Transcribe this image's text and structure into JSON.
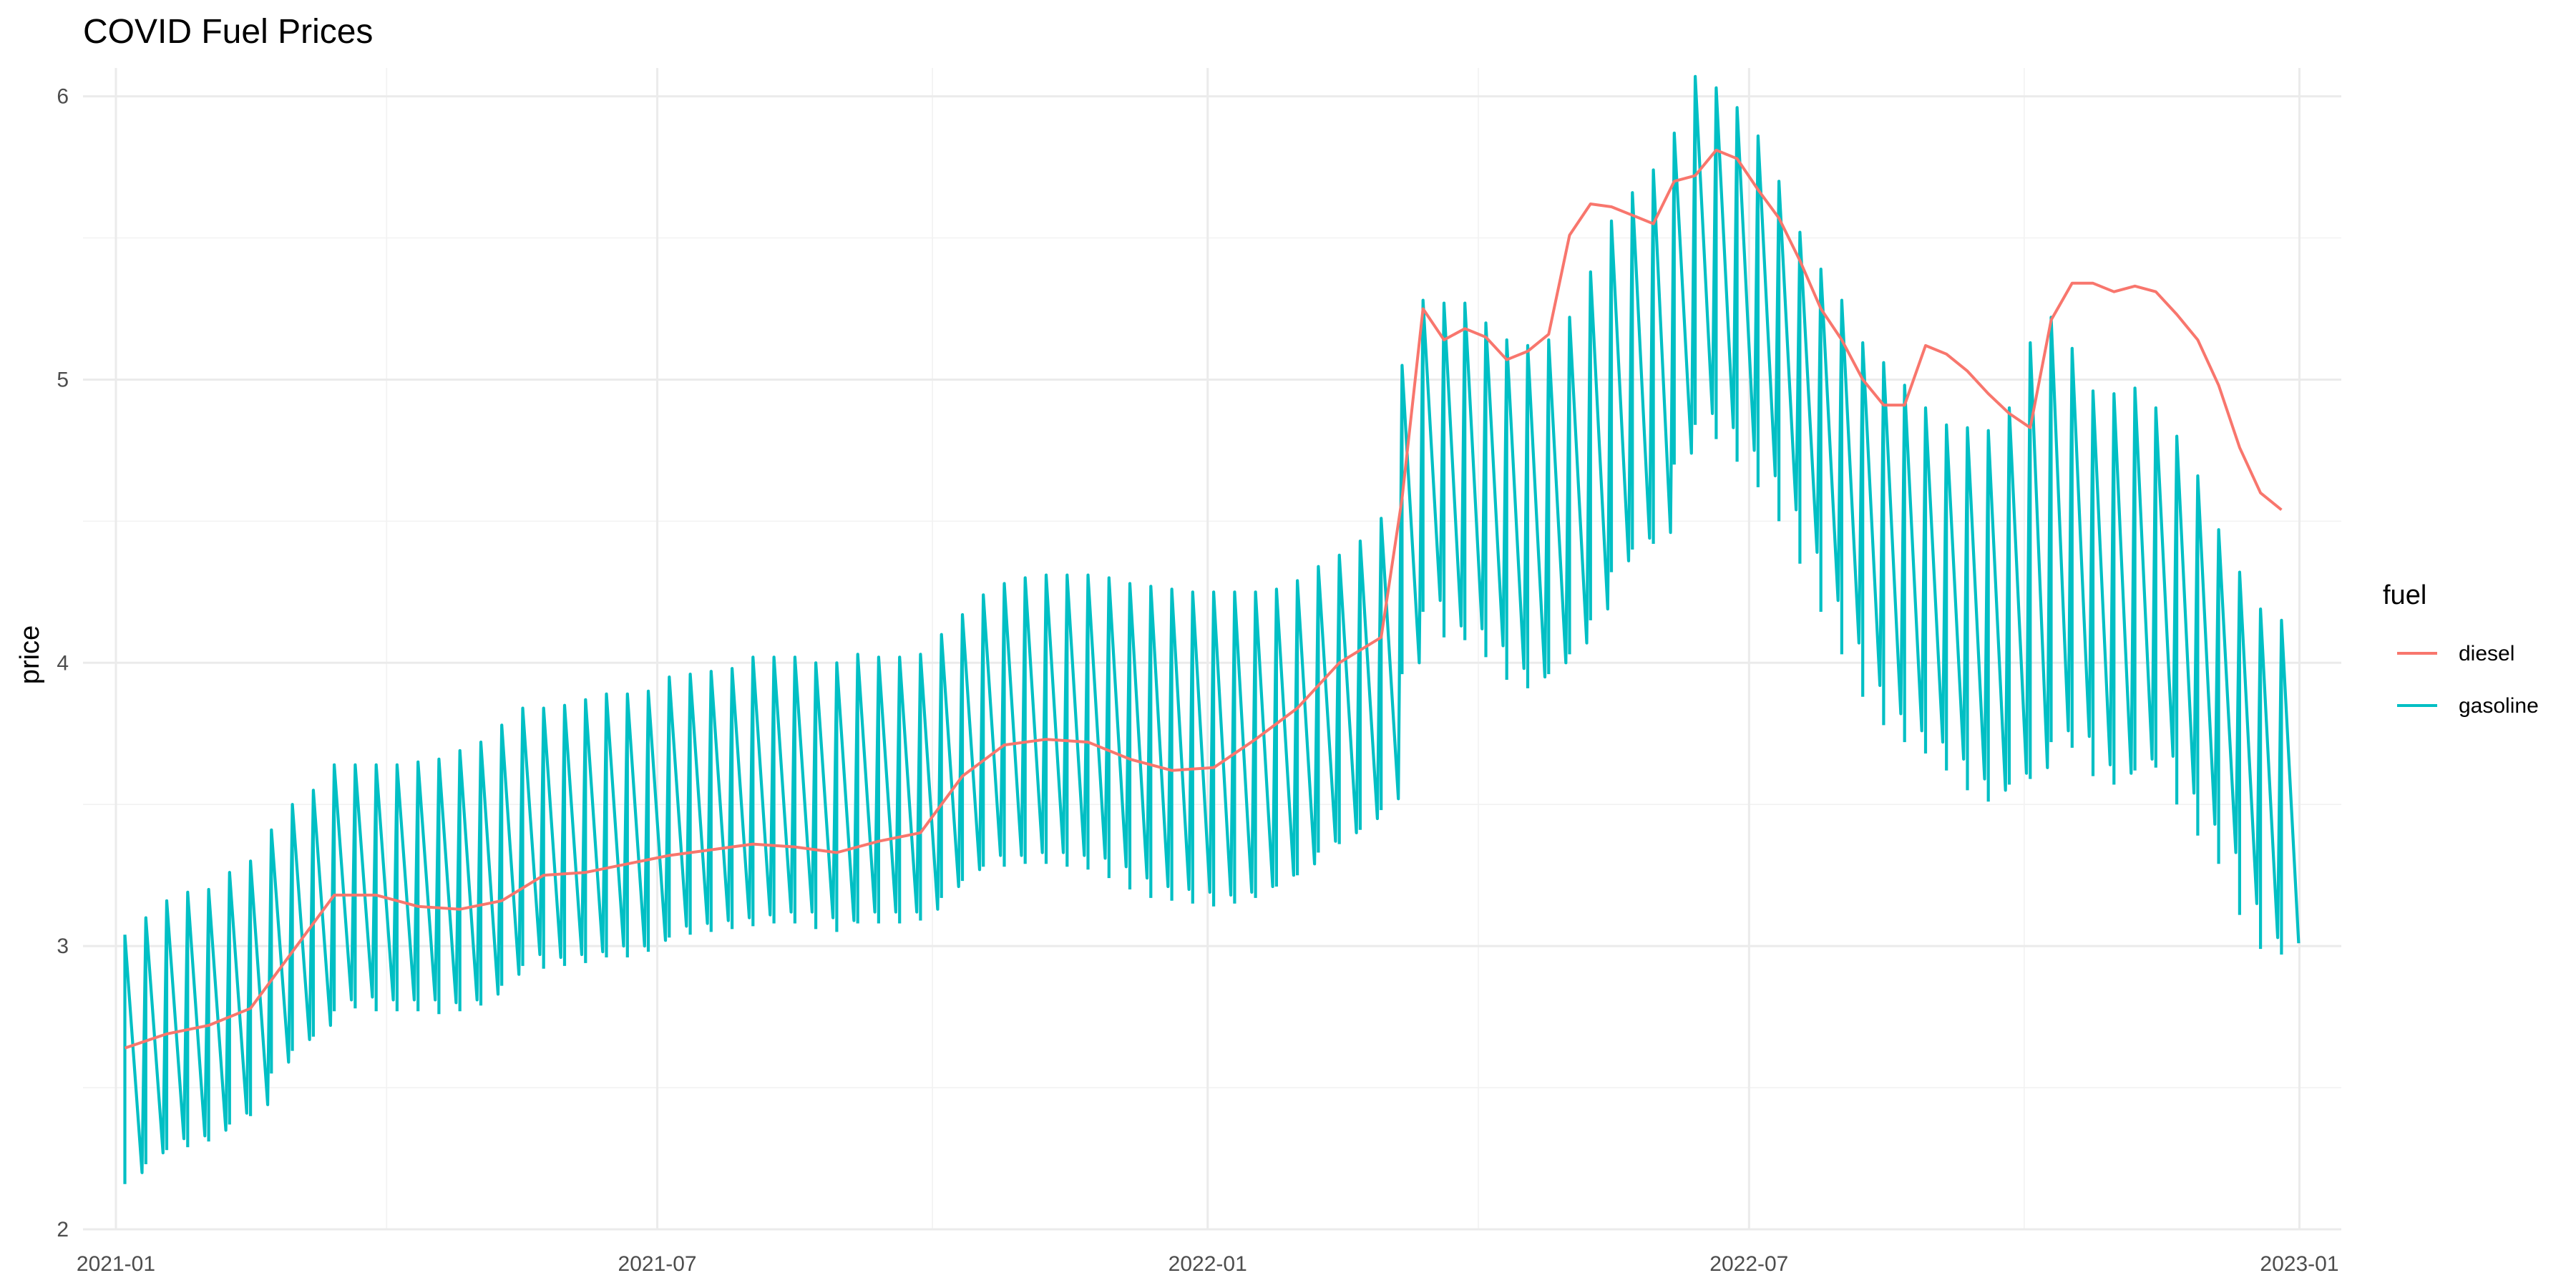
{
  "chart_data": {
    "type": "line",
    "title": "COVID Fuel Prices",
    "xlabel": "",
    "ylabel": "price",
    "x_scale": "date",
    "xlim": [
      "2020-12-21",
      "2023-01-15"
    ],
    "ylim": [
      2,
      6.1
    ],
    "x_ticks": [
      "2021-01-01",
      "2021-07-01",
      "2022-01-01",
      "2022-07-01",
      "2023-01-01"
    ],
    "x_tick_labels": [
      "2021-01",
      "2021-07",
      "2022-01",
      "2022-07",
      "2023-01"
    ],
    "y_ticks": [
      2,
      3,
      4,
      5,
      6
    ],
    "y_tick_labels": [
      "2",
      "3",
      "4",
      "5",
      "6"
    ],
    "grid": true,
    "legend": {
      "title": "fuel",
      "position": "right"
    },
    "series": [
      {
        "name": "diesel",
        "color": "#F8766D",
        "points": [
          [
            "2021-01-04",
            2.64
          ],
          [
            "2021-01-18",
            2.69
          ],
          [
            "2021-02-01",
            2.72
          ],
          [
            "2021-02-15",
            2.78
          ],
          [
            "2021-03-01",
            2.98
          ],
          [
            "2021-03-15",
            3.18
          ],
          [
            "2021-03-29",
            3.18
          ],
          [
            "2021-04-12",
            3.14
          ],
          [
            "2021-04-26",
            3.13
          ],
          [
            "2021-05-10",
            3.16
          ],
          [
            "2021-05-24",
            3.25
          ],
          [
            "2021-06-07",
            3.26
          ],
          [
            "2021-06-21",
            3.29
          ],
          [
            "2021-07-05",
            3.32
          ],
          [
            "2021-07-19",
            3.34
          ],
          [
            "2021-08-02",
            3.36
          ],
          [
            "2021-08-16",
            3.35
          ],
          [
            "2021-08-30",
            3.33
          ],
          [
            "2021-09-13",
            3.37
          ],
          [
            "2021-09-27",
            3.4
          ],
          [
            "2021-10-11",
            3.6
          ],
          [
            "2021-10-25",
            3.71
          ],
          [
            "2021-11-08",
            3.73
          ],
          [
            "2021-11-22",
            3.72
          ],
          [
            "2021-12-06",
            3.66
          ],
          [
            "2021-12-20",
            3.62
          ],
          [
            "2022-01-03",
            3.63
          ],
          [
            "2022-01-17",
            3.73
          ],
          [
            "2022-01-31",
            3.84
          ],
          [
            "2022-02-14",
            4.0
          ],
          [
            "2022-02-28",
            4.09
          ],
          [
            "2022-03-07",
            4.58
          ],
          [
            "2022-03-14",
            5.25
          ],
          [
            "2022-03-21",
            5.14
          ],
          [
            "2022-03-28",
            5.18
          ],
          [
            "2022-04-04",
            5.15
          ],
          [
            "2022-04-11",
            5.07
          ],
          [
            "2022-04-18",
            5.1
          ],
          [
            "2022-04-25",
            5.16
          ],
          [
            "2022-05-02",
            5.51
          ],
          [
            "2022-05-09",
            5.62
          ],
          [
            "2022-05-16",
            5.61
          ],
          [
            "2022-05-23",
            5.58
          ],
          [
            "2022-05-30",
            5.55
          ],
          [
            "2022-06-06",
            5.7
          ],
          [
            "2022-06-13",
            5.72
          ],
          [
            "2022-06-20",
            5.81
          ],
          [
            "2022-06-27",
            5.78
          ],
          [
            "2022-07-04",
            5.67
          ],
          [
            "2022-07-11",
            5.57
          ],
          [
            "2022-07-18",
            5.42
          ],
          [
            "2022-07-25",
            5.25
          ],
          [
            "2022-08-01",
            5.14
          ],
          [
            "2022-08-08",
            5.0
          ],
          [
            "2022-08-15",
            4.91
          ],
          [
            "2022-08-22",
            4.91
          ],
          [
            "2022-08-29",
            5.12
          ],
          [
            "2022-09-05",
            5.09
          ],
          [
            "2022-09-12",
            5.03
          ],
          [
            "2022-09-19",
            4.95
          ],
          [
            "2022-09-26",
            4.88
          ],
          [
            "2022-10-03",
            4.83
          ],
          [
            "2022-10-10",
            5.21
          ],
          [
            "2022-10-17",
            5.34
          ],
          [
            "2022-10-24",
            5.34
          ],
          [
            "2022-10-31",
            5.31
          ],
          [
            "2022-11-07",
            5.33
          ],
          [
            "2022-11-14",
            5.31
          ],
          [
            "2022-11-21",
            5.23
          ],
          [
            "2022-11-28",
            5.14
          ],
          [
            "2022-12-05",
            4.98
          ],
          [
            "2022-12-12",
            4.76
          ],
          [
            "2022-12-19",
            4.6
          ],
          [
            "2022-12-26",
            4.54
          ]
        ]
      },
      {
        "name": "gasoline",
        "color": "#00BFC4",
        "weekly_range": [
          [
            "2021-01-04",
            2.16,
            3.04
          ],
          [
            "2021-01-11",
            2.23,
            3.1
          ],
          [
            "2021-01-18",
            2.28,
            3.16
          ],
          [
            "2021-01-25",
            2.29,
            3.19
          ],
          [
            "2021-02-01",
            2.31,
            3.2
          ],
          [
            "2021-02-08",
            2.37,
            3.26
          ],
          [
            "2021-02-15",
            2.4,
            3.3
          ],
          [
            "2021-02-22",
            2.55,
            3.41
          ],
          [
            "2021-03-01",
            2.63,
            3.5
          ],
          [
            "2021-03-08",
            2.68,
            3.55
          ],
          [
            "2021-03-15",
            2.77,
            3.64
          ],
          [
            "2021-03-22",
            2.78,
            3.64
          ],
          [
            "2021-03-29",
            2.77,
            3.64
          ],
          [
            "2021-04-05",
            2.77,
            3.64
          ],
          [
            "2021-04-12",
            2.77,
            3.65
          ],
          [
            "2021-04-19",
            2.76,
            3.66
          ],
          [
            "2021-04-26",
            2.77,
            3.69
          ],
          [
            "2021-05-03",
            2.79,
            3.72
          ],
          [
            "2021-05-10",
            2.86,
            3.78
          ],
          [
            "2021-05-17",
            2.93,
            3.84
          ],
          [
            "2021-05-24",
            2.92,
            3.84
          ],
          [
            "2021-05-31",
            2.93,
            3.85
          ],
          [
            "2021-06-07",
            2.94,
            3.87
          ],
          [
            "2021-06-14",
            2.96,
            3.89
          ],
          [
            "2021-06-21",
            2.96,
            3.89
          ],
          [
            "2021-06-28",
            2.98,
            3.9
          ],
          [
            "2021-07-05",
            3.03,
            3.95
          ],
          [
            "2021-07-12",
            3.04,
            3.96
          ],
          [
            "2021-07-19",
            3.05,
            3.97
          ],
          [
            "2021-07-26",
            3.06,
            3.98
          ],
          [
            "2021-08-02",
            3.07,
            4.02
          ],
          [
            "2021-08-09",
            3.08,
            4.02
          ],
          [
            "2021-08-16",
            3.08,
            4.02
          ],
          [
            "2021-08-23",
            3.06,
            4.0
          ],
          [
            "2021-08-30",
            3.05,
            4.0
          ],
          [
            "2021-09-06",
            3.08,
            4.03
          ],
          [
            "2021-09-13",
            3.08,
            4.02
          ],
          [
            "2021-09-20",
            3.08,
            4.02
          ],
          [
            "2021-09-27",
            3.09,
            4.03
          ],
          [
            "2021-10-04",
            3.17,
            4.1
          ],
          [
            "2021-10-11",
            3.23,
            4.17
          ],
          [
            "2021-10-18",
            3.28,
            4.24
          ],
          [
            "2021-10-25",
            3.28,
            4.28
          ],
          [
            "2021-11-01",
            3.29,
            4.3
          ],
          [
            "2021-11-08",
            3.29,
            4.31
          ],
          [
            "2021-11-15",
            3.28,
            4.31
          ],
          [
            "2021-11-22",
            3.27,
            4.31
          ],
          [
            "2021-11-29",
            3.24,
            4.3
          ],
          [
            "2021-12-06",
            3.2,
            4.28
          ],
          [
            "2021-12-13",
            3.17,
            4.27
          ],
          [
            "2021-12-20",
            3.16,
            4.26
          ],
          [
            "2021-12-27",
            3.15,
            4.25
          ],
          [
            "2022-01-03",
            3.14,
            4.25
          ],
          [
            "2022-01-10",
            3.15,
            4.25
          ],
          [
            "2022-01-17",
            3.17,
            4.25
          ],
          [
            "2022-01-24",
            3.21,
            4.26
          ],
          [
            "2022-01-31",
            3.25,
            4.29
          ],
          [
            "2022-02-07",
            3.33,
            4.34
          ],
          [
            "2022-02-14",
            3.36,
            4.38
          ],
          [
            "2022-02-21",
            3.41,
            4.43
          ],
          [
            "2022-02-28",
            3.48,
            4.51
          ],
          [
            "2022-03-07",
            3.96,
            5.05
          ],
          [
            "2022-03-14",
            4.18,
            5.28
          ],
          [
            "2022-03-21",
            4.09,
            5.27
          ],
          [
            "2022-03-28",
            4.08,
            5.27
          ],
          [
            "2022-04-04",
            4.02,
            5.2
          ],
          [
            "2022-04-11",
            3.94,
            5.14
          ],
          [
            "2022-04-18",
            3.91,
            5.12
          ],
          [
            "2022-04-25",
            3.96,
            5.14
          ],
          [
            "2022-05-02",
            4.03,
            5.22
          ],
          [
            "2022-05-09",
            4.15,
            5.38
          ],
          [
            "2022-05-16",
            4.32,
            5.56
          ],
          [
            "2022-05-23",
            4.4,
            5.66
          ],
          [
            "2022-05-30",
            4.42,
            5.74
          ],
          [
            "2022-06-06",
            4.7,
            5.87
          ],
          [
            "2022-06-13",
            4.84,
            6.07
          ],
          [
            "2022-06-20",
            4.79,
            6.03
          ],
          [
            "2022-06-27",
            4.71,
            5.96
          ],
          [
            "2022-07-04",
            4.62,
            5.86
          ],
          [
            "2022-07-11",
            4.5,
            5.7
          ],
          [
            "2022-07-18",
            4.35,
            5.52
          ],
          [
            "2022-07-25",
            4.18,
            5.39
          ],
          [
            "2022-08-01",
            4.03,
            5.28
          ],
          [
            "2022-08-08",
            3.88,
            5.13
          ],
          [
            "2022-08-15",
            3.78,
            5.06
          ],
          [
            "2022-08-22",
            3.72,
            4.98
          ],
          [
            "2022-08-29",
            3.68,
            4.9
          ],
          [
            "2022-09-05",
            3.62,
            4.84
          ],
          [
            "2022-09-12",
            3.55,
            4.83
          ],
          [
            "2022-09-19",
            3.51,
            4.82
          ],
          [
            "2022-09-26",
            3.57,
            4.9
          ],
          [
            "2022-10-03",
            3.59,
            5.13
          ],
          [
            "2022-10-10",
            3.72,
            5.22
          ],
          [
            "2022-10-17",
            3.7,
            5.11
          ],
          [
            "2022-10-24",
            3.6,
            4.96
          ],
          [
            "2022-10-31",
            3.57,
            4.95
          ],
          [
            "2022-11-07",
            3.62,
            4.97
          ],
          [
            "2022-11-14",
            3.63,
            4.9
          ],
          [
            "2022-11-21",
            3.5,
            4.8
          ],
          [
            "2022-11-28",
            3.39,
            4.66
          ],
          [
            "2022-12-05",
            3.29,
            4.47
          ],
          [
            "2022-12-12",
            3.11,
            4.32
          ],
          [
            "2022-12-19",
            2.99,
            4.19
          ],
          [
            "2022-12-26",
            2.97,
            4.15
          ]
        ]
      }
    ]
  }
}
